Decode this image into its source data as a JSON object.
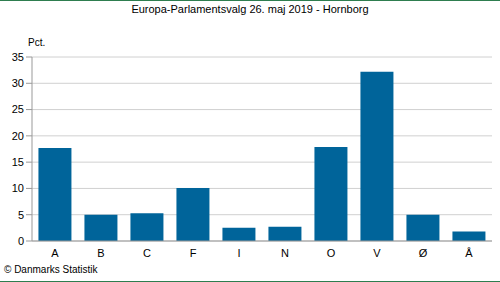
{
  "chart_data": {
    "type": "bar",
    "title": "Europa-Parlamentsvalg 26. maj 2019 - Hornborg",
    "ylabel": "Pct.",
    "annotation": "© Danmarks Statistik",
    "categories": [
      "A",
      "B",
      "C",
      "F",
      "I",
      "N",
      "O",
      "V",
      "Ø",
      "Å"
    ],
    "values": [
      17.7,
      5.0,
      5.3,
      10.1,
      2.5,
      2.7,
      17.9,
      32.2,
      5.0,
      1.8
    ],
    "color": "#00649a",
    "ylim": [
      0,
      35
    ],
    "yticks": [
      0,
      5,
      10,
      15,
      20,
      25,
      30,
      35
    ],
    "grid": true
  }
}
